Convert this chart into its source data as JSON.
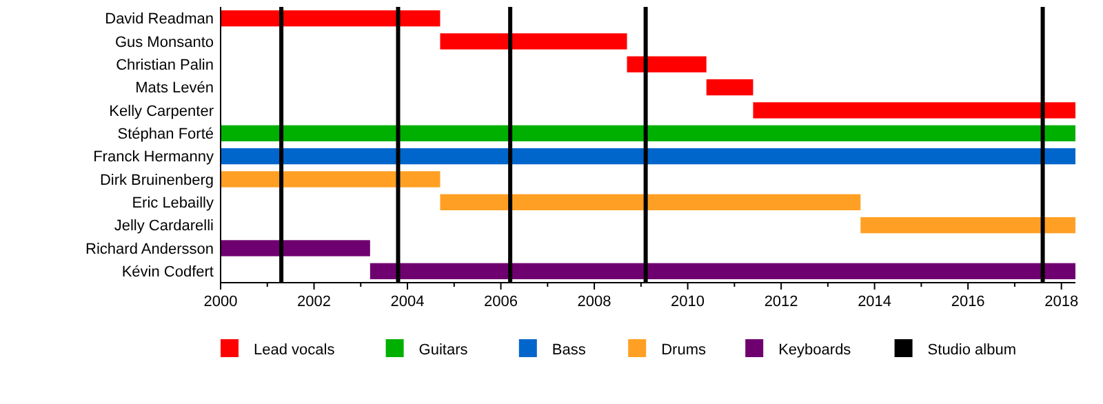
{
  "chart_data": {
    "type": "bar",
    "orientation": "horizontal",
    "categories": [
      "David Readman",
      "Gus Monsanto",
      "Christian Palin",
      "Mats Levén",
      "Kelly Carpenter",
      "Stéphan Forté",
      "Franck Hermanny",
      "Dirk Bruinenberg",
      "Eric Lebailly",
      "Jelly Cardarelli",
      "Richard Andersson",
      "Kévin Codfert"
    ],
    "series": [
      {
        "name": "Lead vocals",
        "color": "#ff0000",
        "base": [
          2000,
          2004.7,
          2008.7,
          2010.4,
          2011.4,
          null,
          null,
          null,
          null,
          null,
          null,
          null
        ],
        "values": [
          4.7,
          4,
          1.7,
          1,
          6.9,
          null,
          null,
          null,
          null,
          null,
          null,
          null
        ]
      },
      {
        "name": "Guitars",
        "color": "#00b000",
        "base": [
          null,
          null,
          null,
          null,
          null,
          2000,
          null,
          null,
          null,
          null,
          null,
          null
        ],
        "values": [
          null,
          null,
          null,
          null,
          null,
          18.3,
          null,
          null,
          null,
          null,
          null,
          null
        ]
      },
      {
        "name": "Bass",
        "color": "#0066cc",
        "base": [
          null,
          null,
          null,
          null,
          null,
          null,
          2000,
          null,
          null,
          null,
          null,
          null
        ],
        "values": [
          null,
          null,
          null,
          null,
          null,
          null,
          18.3,
          null,
          null,
          null,
          null,
          null
        ]
      },
      {
        "name": "Drums",
        "color": "#ffa024",
        "base": [
          null,
          null,
          null,
          null,
          null,
          null,
          null,
          2000,
          2004.7,
          2013.7,
          null,
          null
        ],
        "values": [
          null,
          null,
          null,
          null,
          null,
          null,
          null,
          4.7,
          9,
          4.6,
          null,
          null
        ]
      },
      {
        "name": "Keyboards",
        "color": "#6f006f",
        "base": [
          null,
          null,
          null,
          null,
          null,
          null,
          null,
          null,
          null,
          null,
          2000,
          2003.2
        ],
        "values": [
          null,
          null,
          null,
          null,
          null,
          null,
          null,
          null,
          null,
          null,
          3.2,
          15.1
        ]
      }
    ],
    "ref_lines": [
      {
        "axis": "x",
        "value": 2001.3,
        "label": "Studio album",
        "color": "#000000"
      },
      {
        "axis": "x",
        "value": 2003.8,
        "color": "#000000"
      },
      {
        "axis": "x",
        "value": 2006.2,
        "color": "#000000"
      },
      {
        "axis": "x",
        "value": 2009.1,
        "color": "#000000"
      },
      {
        "axis": "x",
        "value": 2017.6,
        "color": "#000000"
      }
    ],
    "xlim": [
      2000,
      2018.3
    ],
    "xticks": [
      2000,
      {
        "value": 2001,
        "label": null
      },
      2002,
      {
        "value": 2003,
        "label": null
      },
      2004,
      {
        "value": 2005,
        "label": null
      },
      2006,
      {
        "value": 2007,
        "label": null
      },
      2008,
      {
        "value": 2009,
        "label": null
      },
      2010,
      {
        "value": 2011,
        "label": null
      },
      2012,
      {
        "value": 2013,
        "label": null
      },
      2014,
      {
        "value": 2015,
        "label": null
      },
      2016,
      {
        "value": 2017,
        "label": null
      },
      2018
    ],
    "legend": "bottom"
  }
}
